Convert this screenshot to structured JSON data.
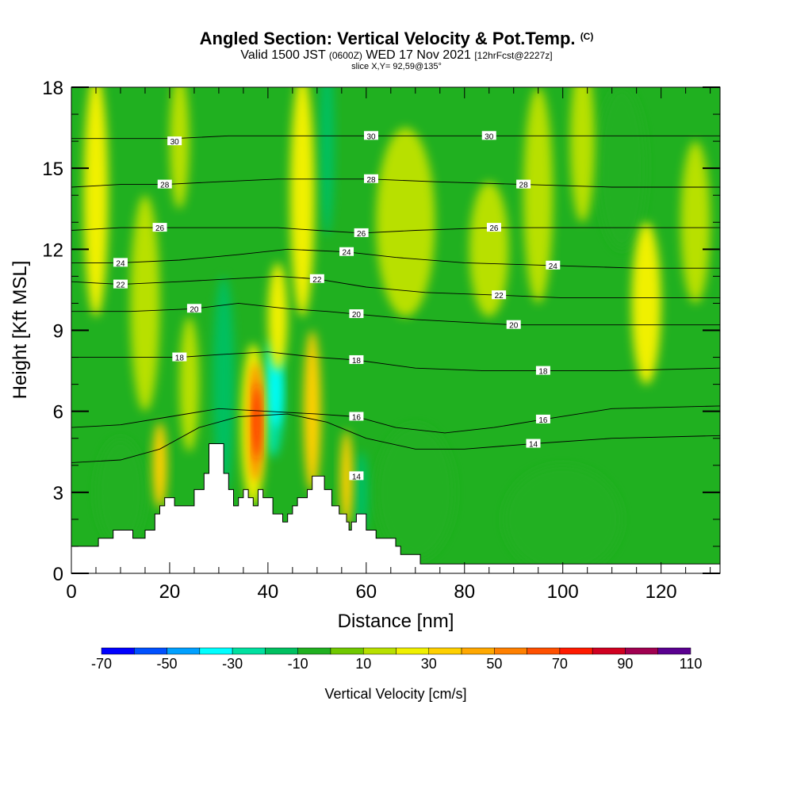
{
  "title": {
    "main": "Angled Section: Vertical Velocity & Pot.Temp.",
    "copyright": "(C)",
    "valid_prefix": "Valid 1500 JST",
    "valid_z": "(0600Z)",
    "valid_date": "WED 17 Nov 2021",
    "forecast": "[12hrFcst@2227z]",
    "slice": "slice X,Y= 92,59@135°"
  },
  "chart_data": {
    "type": "heatmap",
    "xlabel": "Distance [nm]",
    "ylabel": "Height [Kft MSL]",
    "xlim": [
      0,
      132
    ],
    "ylim": [
      0,
      18
    ],
    "x_ticks": [
      0,
      20,
      40,
      60,
      80,
      100,
      120
    ],
    "y_ticks": [
      0,
      3,
      6,
      9,
      12,
      15,
      18
    ],
    "colorbar": {
      "label": "Vertical Velocity [cm/s]",
      "tick_labels": [
        -70,
        -50,
        -30,
        -10,
        10,
        30,
        50,
        70,
        90,
        110
      ],
      "bounds": [
        -70,
        -60,
        -50,
        -40,
        -30,
        -20,
        -10,
        0,
        10,
        20,
        30,
        40,
        50,
        60,
        70,
        80,
        90,
        100,
        110
      ],
      "colors": [
        "#0000ff",
        "#0050ff",
        "#00a0ff",
        "#00ffff",
        "#00e0a0",
        "#00c060",
        "#20b020",
        "#70c800",
        "#b8e000",
        "#f0f000",
        "#ffd000",
        "#ffa800",
        "#ff8000",
        "#ff5000",
        "#ff1a00",
        "#d00020",
        "#a00050",
        "#5a0090"
      ]
    },
    "terrain_kft": [
      [
        0,
        1
      ],
      [
        5.5,
        1
      ],
      [
        5.5,
        1.3
      ],
      [
        8.5,
        1.3
      ],
      [
        8.5,
        1.6
      ],
      [
        12.5,
        1.6
      ],
      [
        12.5,
        1.3
      ],
      [
        15,
        1.3
      ],
      [
        15,
        1.6
      ],
      [
        17,
        1.6
      ],
      [
        17,
        2.2
      ],
      [
        18,
        2.2
      ],
      [
        18,
        2.5
      ],
      [
        19,
        2.5
      ],
      [
        19,
        2.8
      ],
      [
        21,
        2.8
      ],
      [
        21,
        2.5
      ],
      [
        25,
        2.5
      ],
      [
        25,
        3.1
      ],
      [
        27,
        3.1
      ],
      [
        27,
        3.7
      ],
      [
        28,
        3.7
      ],
      [
        28,
        4.8
      ],
      [
        31,
        4.8
      ],
      [
        31,
        3.7
      ],
      [
        32,
        3.7
      ],
      [
        32,
        3.1
      ],
      [
        33,
        3.1
      ],
      [
        33,
        2.5
      ],
      [
        34,
        2.5
      ],
      [
        34,
        2.8
      ],
      [
        35,
        2.8
      ],
      [
        35,
        3.1
      ],
      [
        36,
        3.1
      ],
      [
        36,
        2.8
      ],
      [
        37,
        2.8
      ],
      [
        37,
        2.5
      ],
      [
        38,
        2.5
      ],
      [
        38,
        3.1
      ],
      [
        39,
        3.1
      ],
      [
        39,
        2.8
      ],
      [
        41,
        2.8
      ],
      [
        41,
        2.2
      ],
      [
        43,
        2.2
      ],
      [
        43,
        1.9
      ],
      [
        44,
        1.9
      ],
      [
        44,
        2.2
      ],
      [
        45,
        2.2
      ],
      [
        45,
        2.5
      ],
      [
        46,
        2.5
      ],
      [
        46,
        2.8
      ],
      [
        48,
        2.8
      ],
      [
        48,
        3.1
      ],
      [
        49,
        3.1
      ],
      [
        49,
        3.6
      ],
      [
        51.5,
        3.6
      ],
      [
        51.5,
        3.1
      ],
      [
        53,
        3.1
      ],
      [
        53,
        2.5
      ],
      [
        54.5,
        2.5
      ],
      [
        54.5,
        2.2
      ],
      [
        56,
        2.2
      ],
      [
        56,
        1.9
      ],
      [
        56.5,
        1.9
      ],
      [
        56.5,
        1.6
      ],
      [
        57,
        1.6
      ],
      [
        57,
        1.9
      ],
      [
        58,
        1.9
      ],
      [
        58,
        2.2
      ],
      [
        60,
        2.2
      ],
      [
        60,
        1.6
      ],
      [
        62,
        1.6
      ],
      [
        62,
        1.3
      ],
      [
        66,
        1.3
      ],
      [
        66,
        1
      ],
      [
        67,
        1
      ],
      [
        67,
        0.7
      ],
      [
        71,
        0.7
      ],
      [
        71,
        0.35
      ],
      [
        132,
        0.35
      ]
    ],
    "updrafts": [
      {
        "x": 5,
        "y": 14,
        "w": 2.5,
        "h": 4.5,
        "value": 25
      },
      {
        "x": 15,
        "y": 10,
        "w": 3,
        "h": 4,
        "value": 12
      },
      {
        "x": 18,
        "y": 4,
        "w": 1.5,
        "h": 1.6,
        "value": 35
      },
      {
        "x": 22,
        "y": 16,
        "w": 2,
        "h": 2.5,
        "value": 15
      },
      {
        "x": 24,
        "y": 7,
        "w": 2,
        "h": 2.5,
        "value": 15
      },
      {
        "x": 37,
        "y": 5.5,
        "w": 2.5,
        "h": 3,
        "value": 25
      },
      {
        "x": 37.5,
        "y": 5.6,
        "w": 1.3,
        "h": 2.2,
        "value": 55
      },
      {
        "x": 37.8,
        "y": 5.6,
        "w": 0.7,
        "h": 1.4,
        "value": 75
      },
      {
        "x": 42,
        "y": 9.5,
        "w": 2,
        "h": 2,
        "value": 25
      },
      {
        "x": 47,
        "y": 14,
        "w": 2.5,
        "h": 4.5,
        "value": 20
      },
      {
        "x": 49,
        "y": 6,
        "w": 1.8,
        "h": 3,
        "value": 30
      },
      {
        "x": 56,
        "y": 3.5,
        "w": 1.3,
        "h": 1.8,
        "value": 35
      },
      {
        "x": 68,
        "y": 13,
        "w": 6,
        "h": 3.5,
        "value": 18
      },
      {
        "x": 85,
        "y": 12,
        "w": 4,
        "h": 2.5,
        "value": 18
      },
      {
        "x": 95,
        "y": 14,
        "w": 3,
        "h": 4,
        "value": 15
      },
      {
        "x": 104,
        "y": 16,
        "w": 2.5,
        "h": 3,
        "value": 15
      },
      {
        "x": 117,
        "y": 10,
        "w": 3,
        "h": 3,
        "value": 20
      },
      {
        "x": 127,
        "y": 13,
        "w": 3,
        "h": 3,
        "value": 15
      }
    ],
    "downdrafts": [
      {
        "x": 10,
        "y": 3,
        "w": 5,
        "h": 2,
        "value": -5
      },
      {
        "x": 31,
        "y": 7,
        "w": 2.2,
        "h": 4,
        "value": -15
      },
      {
        "x": 41,
        "y": 6.5,
        "w": 2.2,
        "h": 2.2,
        "value": -25
      },
      {
        "x": 41.5,
        "y": 6.8,
        "w": 1.3,
        "h": 1.4,
        "value": -35
      },
      {
        "x": 52,
        "y": 16,
        "w": 1.5,
        "h": 3.5,
        "value": -15
      },
      {
        "x": 59,
        "y": 3,
        "w": 1.5,
        "h": 1.5,
        "value": -15
      },
      {
        "x": 70,
        "y": 3,
        "w": 8,
        "h": 2.5,
        "value": -5
      },
      {
        "x": 100,
        "y": 2,
        "w": 12,
        "h": 2,
        "value": -5
      },
      {
        "x": 112,
        "y": 15,
        "w": 5,
        "h": 3,
        "value": -5
      }
    ],
    "isentropes": [
      {
        "theta": 14,
        "label_positions": [
          [
            58,
            3.6
          ],
          [
            94,
            4.8
          ]
        ],
        "points": [
          [
            0,
            4.1
          ],
          [
            10,
            4.2
          ],
          [
            18,
            4.6
          ],
          [
            26,
            5.4
          ],
          [
            34,
            5.8
          ],
          [
            44,
            5.9
          ],
          [
            52,
            5.6
          ],
          [
            60,
            5.0
          ],
          [
            70,
            4.6
          ],
          [
            80,
            4.6
          ],
          [
            94,
            4.8
          ],
          [
            110,
            5.0
          ],
          [
            132,
            5.1
          ]
        ]
      },
      {
        "theta": 16,
        "label_positions": [
          [
            58,
            5.8
          ],
          [
            96,
            5.7
          ]
        ],
        "points": [
          [
            0,
            5.4
          ],
          [
            10,
            5.5
          ],
          [
            20,
            5.8
          ],
          [
            30,
            6.1
          ],
          [
            40,
            6.0
          ],
          [
            50,
            5.9
          ],
          [
            58,
            5.8
          ],
          [
            66,
            5.4
          ],
          [
            76,
            5.2
          ],
          [
            86,
            5.4
          ],
          [
            96,
            5.7
          ],
          [
            110,
            6.1
          ],
          [
            132,
            6.2
          ]
        ]
      },
      {
        "theta": 18,
        "label_positions": [
          [
            22,
            8.0
          ],
          [
            58,
            7.9
          ],
          [
            96,
            7.5
          ]
        ],
        "points": [
          [
            0,
            8.0
          ],
          [
            10,
            8.0
          ],
          [
            22,
            8.0
          ],
          [
            30,
            8.1
          ],
          [
            40,
            8.2
          ],
          [
            50,
            8.0
          ],
          [
            58,
            7.9
          ],
          [
            70,
            7.6
          ],
          [
            84,
            7.5
          ],
          [
            96,
            7.5
          ],
          [
            110,
            7.5
          ],
          [
            132,
            7.6
          ]
        ]
      },
      {
        "theta": 20,
        "label_positions": [
          [
            25,
            9.8
          ],
          [
            58,
            9.6
          ],
          [
            90,
            9.2
          ]
        ],
        "points": [
          [
            0,
            9.7
          ],
          [
            12,
            9.7
          ],
          [
            25,
            9.8
          ],
          [
            34,
            10.0
          ],
          [
            44,
            9.8
          ],
          [
            52,
            9.7
          ],
          [
            58,
            9.6
          ],
          [
            70,
            9.4
          ],
          [
            80,
            9.3
          ],
          [
            90,
            9.2
          ],
          [
            110,
            9.2
          ],
          [
            132,
            9.2
          ]
        ]
      },
      {
        "theta": 22,
        "label_positions": [
          [
            10,
            10.7
          ],
          [
            50,
            10.9
          ],
          [
            87,
            10.3
          ]
        ],
        "points": [
          [
            0,
            10.8
          ],
          [
            10,
            10.7
          ],
          [
            22,
            10.8
          ],
          [
            32,
            10.9
          ],
          [
            42,
            11.0
          ],
          [
            50,
            10.9
          ],
          [
            60,
            10.6
          ],
          [
            72,
            10.4
          ],
          [
            87,
            10.3
          ],
          [
            100,
            10.2
          ],
          [
            132,
            10.2
          ]
        ]
      },
      {
        "theta": 24,
        "label_positions": [
          [
            10,
            11.5
          ],
          [
            56,
            11.9
          ],
          [
            98,
            11.4
          ]
        ],
        "points": [
          [
            0,
            11.5
          ],
          [
            10,
            11.5
          ],
          [
            22,
            11.6
          ],
          [
            34,
            11.8
          ],
          [
            44,
            12.0
          ],
          [
            56,
            11.9
          ],
          [
            66,
            11.7
          ],
          [
            80,
            11.5
          ],
          [
            98,
            11.4
          ],
          [
            115,
            11.3
          ],
          [
            132,
            11.3
          ]
        ]
      },
      {
        "theta": 26,
        "label_positions": [
          [
            18,
            12.8
          ],
          [
            59,
            12.6
          ],
          [
            86,
            12.8
          ]
        ],
        "points": [
          [
            0,
            12.7
          ],
          [
            10,
            12.8
          ],
          [
            18,
            12.8
          ],
          [
            30,
            12.8
          ],
          [
            42,
            12.8
          ],
          [
            50,
            12.7
          ],
          [
            59,
            12.6
          ],
          [
            70,
            12.7
          ],
          [
            86,
            12.8
          ],
          [
            100,
            12.8
          ],
          [
            132,
            12.8
          ]
        ]
      },
      {
        "theta": 28,
        "label_positions": [
          [
            19,
            14.4
          ],
          [
            61,
            14.6
          ],
          [
            92,
            14.4
          ]
        ],
        "points": [
          [
            0,
            14.3
          ],
          [
            10,
            14.4
          ],
          [
            19,
            14.4
          ],
          [
            30,
            14.5
          ],
          [
            42,
            14.6
          ],
          [
            52,
            14.6
          ],
          [
            61,
            14.6
          ],
          [
            74,
            14.5
          ],
          [
            92,
            14.4
          ],
          [
            110,
            14.3
          ],
          [
            132,
            14.3
          ]
        ]
      },
      {
        "theta": 30,
        "label_positions": [
          [
            21,
            16.0
          ],
          [
            61,
            16.2
          ],
          [
            85,
            16.2
          ]
        ],
        "points": [
          [
            0,
            16.1
          ],
          [
            10,
            16.1
          ],
          [
            21,
            16.1
          ],
          [
            32,
            16.2
          ],
          [
            44,
            16.2
          ],
          [
            52,
            16.2
          ],
          [
            61,
            16.2
          ],
          [
            72,
            16.2
          ],
          [
            85,
            16.2
          ],
          [
            100,
            16.2
          ],
          [
            132,
            16.2
          ]
        ]
      }
    ]
  }
}
